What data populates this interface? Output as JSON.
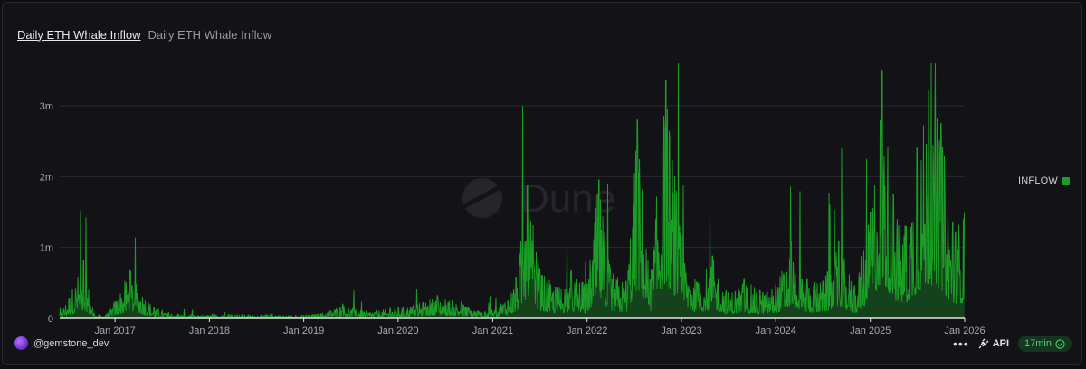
{
  "header": {
    "title": "Daily ETH Whale Inflow",
    "subtitle": "Daily ETH Whale Inflow"
  },
  "watermark": "Dune",
  "legend": {
    "label": "INFLOW",
    "color": "#1a9e25"
  },
  "footer": {
    "user": "@gemstone_dev",
    "more": "•••",
    "api_label": "API",
    "refresh_badge": "17min"
  },
  "colors": {
    "series": "#1a9e25",
    "grid": "#2b2a31",
    "axis": "#e4e4ea",
    "tick_text": "#a9a8b2"
  },
  "chart_data": {
    "type": "area",
    "title": "Daily ETH Whale Inflow",
    "xlabel": "",
    "ylabel": "",
    "x_range": [
      "2016-06-01",
      "2026-01-01"
    ],
    "ylim": [
      0,
      3600000
    ],
    "x_ticks": [
      "Jan 2017",
      "Jan 2018",
      "Jan 2019",
      "Jan 2020",
      "Jan 2021",
      "Jan 2022",
      "Jan 2023",
      "Jan 2024",
      "Jan 2025",
      "Jan 2026"
    ],
    "y_ticks": [
      {
        "value": 0,
        "label": "0"
      },
      {
        "value": 1000000,
        "label": "1m"
      },
      {
        "value": 2000000,
        "label": "2m"
      },
      {
        "value": 3000000,
        "label": "3m"
      }
    ],
    "grid": true,
    "legend_position": "right",
    "series": [
      {
        "name": "INFLOW",
        "color": "#1a9e25",
        "x": [
          "2016-06-01",
          "2016-09-01",
          "2016-10-15",
          "2016-12-01",
          "2017-03-01",
          "2017-06-01",
          "2017-09-01",
          "2017-12-01",
          "2018-03-01",
          "2018-06-01",
          "2018-09-01",
          "2018-12-01",
          "2019-03-01",
          "2019-06-01",
          "2019-09-01",
          "2019-12-01",
          "2020-03-01",
          "2020-06-01",
          "2020-09-01",
          "2020-12-01",
          "2021-02-01",
          "2021-04-01",
          "2021-05-15",
          "2021-07-01",
          "2021-09-01",
          "2021-11-01",
          "2022-01-01",
          "2022-02-15",
          "2022-04-01",
          "2022-06-01",
          "2022-07-15",
          "2022-09-01",
          "2022-11-01",
          "2023-01-01",
          "2023-03-01",
          "2023-05-01",
          "2023-07-01",
          "2023-09-01",
          "2023-11-01",
          "2024-01-01",
          "2024-03-01",
          "2024-05-01",
          "2024-07-01",
          "2024-09-01",
          "2024-11-01",
          "2025-01-01",
          "2025-02-15",
          "2025-04-01",
          "2025-05-15",
          "2025-07-01",
          "2025-08-15",
          "2025-10-01",
          "2025-11-15",
          "2025-12-31"
        ],
        "values": [
          50000,
          820000,
          40000,
          60000,
          680000,
          150000,
          60000,
          40000,
          80000,
          50000,
          60000,
          40000,
          70000,
          200000,
          100000,
          140000,
          190000,
          320000,
          230000,
          90000,
          200000,
          580000,
          1880000,
          700000,
          440000,
          670000,
          480000,
          1950000,
          700000,
          520000,
          2800000,
          540000,
          3360000,
          1150000,
          510000,
          880000,
          360000,
          560000,
          390000,
          470000,
          1070000,
          560000,
          520000,
          1080000,
          460000,
          1500000,
          3500000,
          1750000,
          1300000,
          2400000,
          3220000,
          2750000,
          1350000,
          1490000
        ]
      }
    ]
  }
}
